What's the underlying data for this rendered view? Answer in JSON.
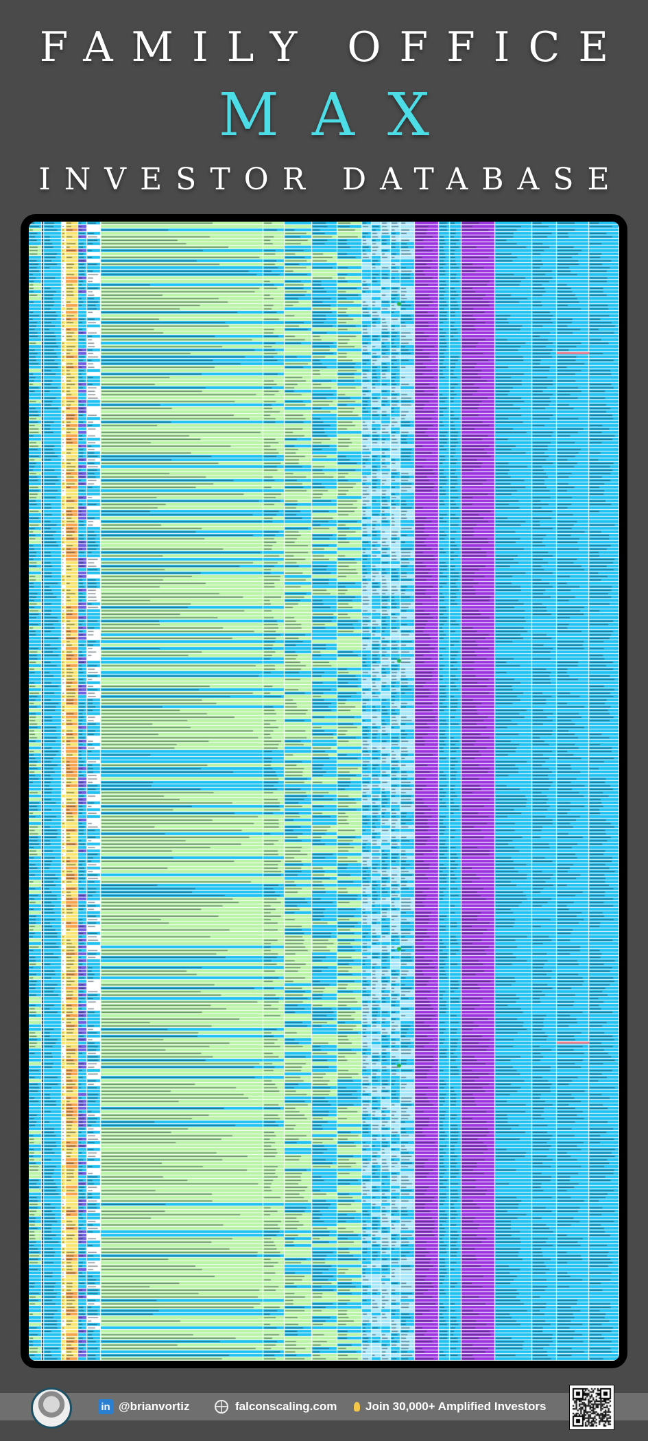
{
  "header": {
    "line1": "FAMILY OFFICE",
    "line2": "MAX",
    "line3": "INVESTOR DATABASE",
    "accent_color": "#4ddde6"
  },
  "sheet": {
    "palette": {
      "blue": "#1fc1f1",
      "green": "#b9f3a6",
      "light_blue": "#a6e6f8",
      "purple": "#9b33df",
      "yellow": "#f8e46c",
      "orange": "#f6a24a",
      "white": "#ffffff",
      "ink": "#1b2a33"
    }
  },
  "footer": {
    "linkedin_handle": "@brianvortiz",
    "website": "falconscaling.com",
    "cta": "Join 30,000+ Amplified Investors",
    "icons": [
      "linkedin-icon",
      "globe-icon",
      "lightbulb-icon",
      "qr-code-icon"
    ]
  }
}
